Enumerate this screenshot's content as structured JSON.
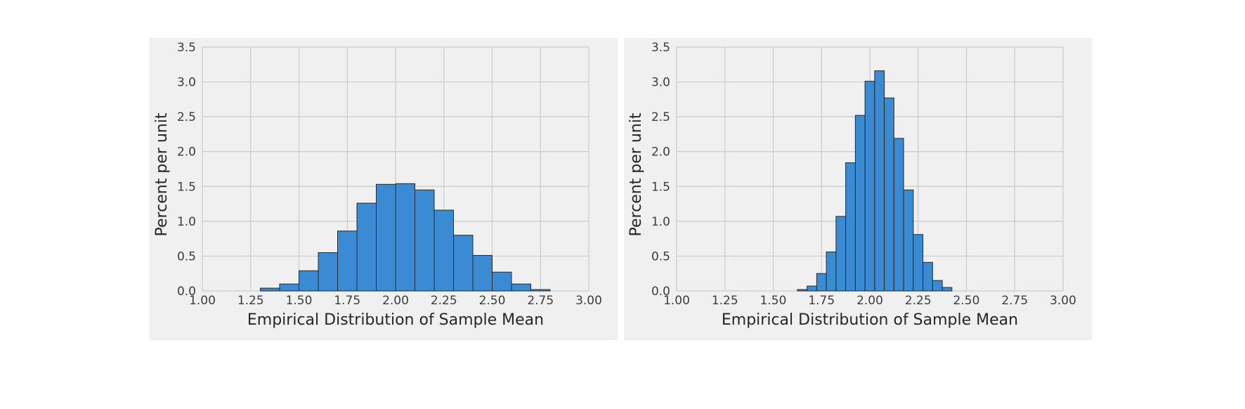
{
  "chart_data": [
    {
      "type": "bar",
      "xlabel": "Empirical Distribution of Sample Mean",
      "ylabel": "Percent per unit",
      "xlim": [
        1.0,
        3.0
      ],
      "ylim": [
        0.0,
        3.5
      ],
      "grid": true,
      "x_ticks": [
        "1.00",
        "1.25",
        "1.50",
        "1.75",
        "2.00",
        "2.25",
        "2.50",
        "2.75",
        "3.00"
      ],
      "y_ticks": [
        "0.0",
        "0.5",
        "1.0",
        "1.5",
        "2.0",
        "2.5",
        "3.0",
        "3.5"
      ],
      "bar_color": "#3a8bd3",
      "bins": [
        {
          "x0": 1.3,
          "x1": 1.4,
          "value": 0.04
        },
        {
          "x0": 1.4,
          "x1": 1.5,
          "value": 0.1
        },
        {
          "x0": 1.5,
          "x1": 1.6,
          "value": 0.29
        },
        {
          "x0": 1.6,
          "x1": 1.7,
          "value": 0.55
        },
        {
          "x0": 1.7,
          "x1": 1.8,
          "value": 0.86
        },
        {
          "x0": 1.8,
          "x1": 1.9,
          "value": 1.26
        },
        {
          "x0": 1.9,
          "x1": 2.0,
          "value": 1.53
        },
        {
          "x0": 2.0,
          "x1": 2.1,
          "value": 1.54
        },
        {
          "x0": 2.1,
          "x1": 2.2,
          "value": 1.45
        },
        {
          "x0": 2.2,
          "x1": 2.3,
          "value": 1.16
        },
        {
          "x0": 2.3,
          "x1": 2.4,
          "value": 0.8
        },
        {
          "x0": 2.4,
          "x1": 2.5,
          "value": 0.51
        },
        {
          "x0": 2.5,
          "x1": 2.6,
          "value": 0.27
        },
        {
          "x0": 2.6,
          "x1": 2.7,
          "value": 0.1
        },
        {
          "x0": 2.7,
          "x1": 2.8,
          "value": 0.02
        }
      ]
    },
    {
      "type": "bar",
      "xlabel": "Empirical Distribution of Sample Mean",
      "ylabel": "Percent per unit",
      "xlim": [
        1.0,
        3.0
      ],
      "ylim": [
        0.0,
        3.5
      ],
      "grid": true,
      "x_ticks": [
        "1.00",
        "1.25",
        "1.50",
        "1.75",
        "2.00",
        "2.25",
        "2.50",
        "2.75",
        "3.00"
      ],
      "y_ticks": [
        "0.0",
        "0.5",
        "1.0",
        "1.5",
        "2.0",
        "2.5",
        "3.0",
        "3.5"
      ],
      "bar_color": "#3a8bd3",
      "bins": [
        {
          "x0": 1.625,
          "x1": 1.675,
          "value": 0.02
        },
        {
          "x0": 1.675,
          "x1": 1.725,
          "value": 0.07
        },
        {
          "x0": 1.725,
          "x1": 1.775,
          "value": 0.25
        },
        {
          "x0": 1.775,
          "x1": 1.825,
          "value": 0.56
        },
        {
          "x0": 1.825,
          "x1": 1.875,
          "value": 1.07
        },
        {
          "x0": 1.875,
          "x1": 1.925,
          "value": 1.84
        },
        {
          "x0": 1.925,
          "x1": 1.975,
          "value": 2.52
        },
        {
          "x0": 1.975,
          "x1": 2.025,
          "value": 3.01
        },
        {
          "x0": 2.025,
          "x1": 2.075,
          "value": 3.16
        },
        {
          "x0": 2.075,
          "x1": 2.125,
          "value": 2.77
        },
        {
          "x0": 2.125,
          "x1": 2.175,
          "value": 2.19
        },
        {
          "x0": 2.175,
          "x1": 2.225,
          "value": 1.45
        },
        {
          "x0": 2.225,
          "x1": 2.275,
          "value": 0.81
        },
        {
          "x0": 2.275,
          "x1": 2.325,
          "value": 0.41
        },
        {
          "x0": 2.325,
          "x1": 2.375,
          "value": 0.15
        },
        {
          "x0": 2.375,
          "x1": 2.425,
          "value": 0.05
        }
      ]
    }
  ]
}
